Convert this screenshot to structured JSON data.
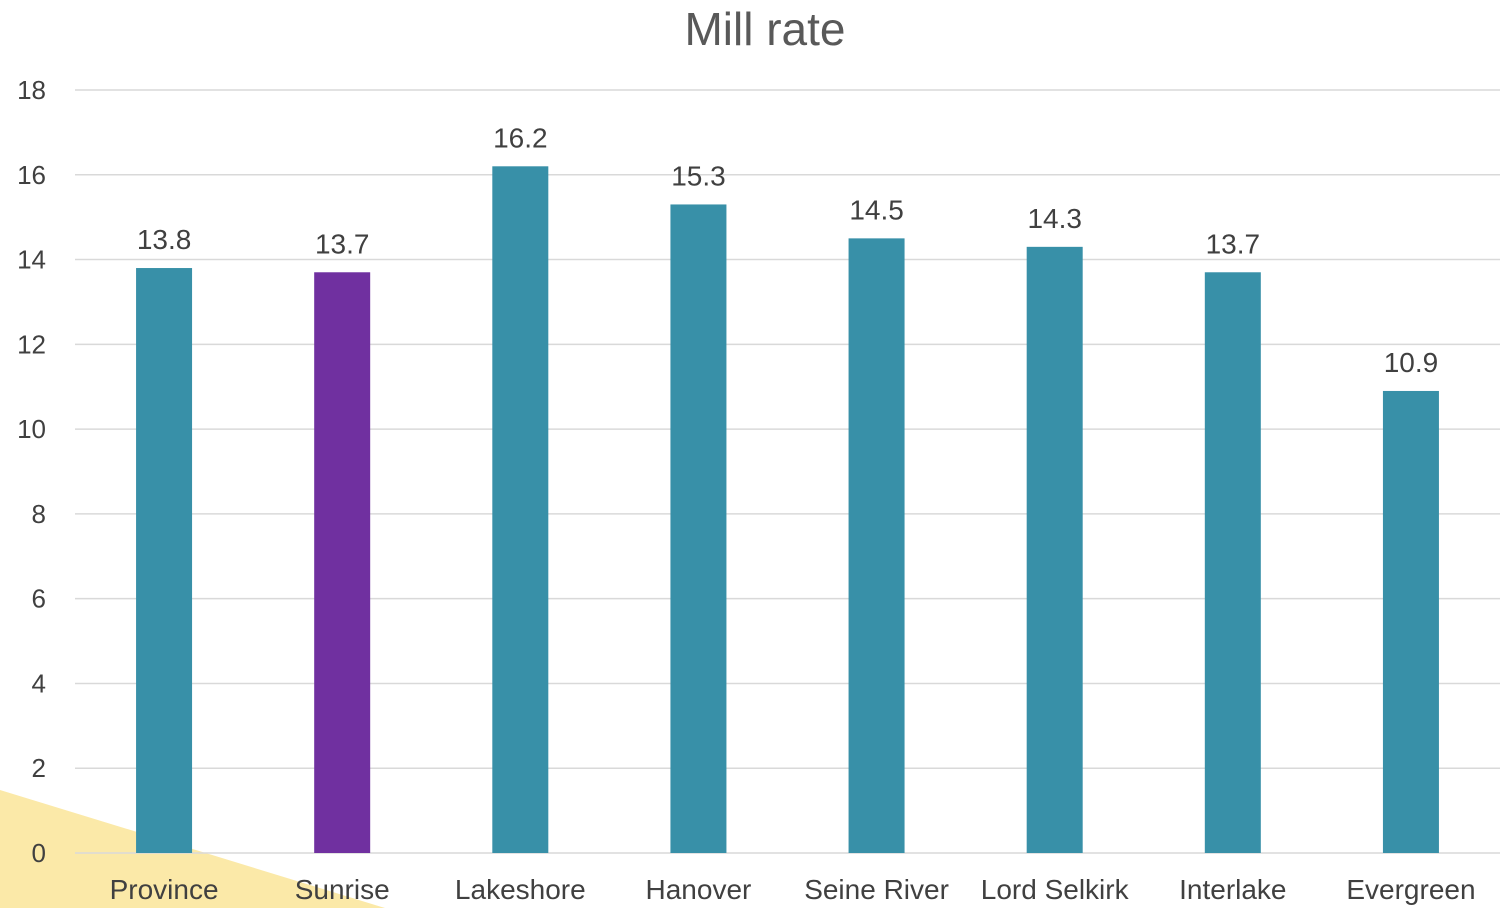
{
  "chart_data": {
    "type": "bar",
    "title": "Mill rate",
    "xlabel": "",
    "ylabel": "",
    "categories": [
      "Province",
      "Sunrise",
      "Lakeshore",
      "Hanover",
      "Seine River",
      "Lord Selkirk",
      "Interlake",
      "Evergreen"
    ],
    "values": [
      13.8,
      13.7,
      16.2,
      15.3,
      14.5,
      14.3,
      13.7,
      10.9
    ],
    "data_labels": [
      "13.8",
      "13.7",
      "16.2",
      "15.3",
      "14.5",
      "14.3",
      "13.7",
      "10.9"
    ],
    "ylim": [
      0,
      18
    ],
    "yticks": [
      "0",
      "2",
      "4",
      "6",
      "8",
      "10",
      "12",
      "14",
      "16",
      "18"
    ],
    "grid": true,
    "legend": "none",
    "colors": {
      "default_bar": "#3890a8",
      "highlight_bar": "#7030a0",
      "highlight_category": "Sunrise",
      "gridline": "#d9d9d9",
      "text": "#404040",
      "title": "#595959",
      "corner_decoration": "#fbe9a8"
    }
  }
}
